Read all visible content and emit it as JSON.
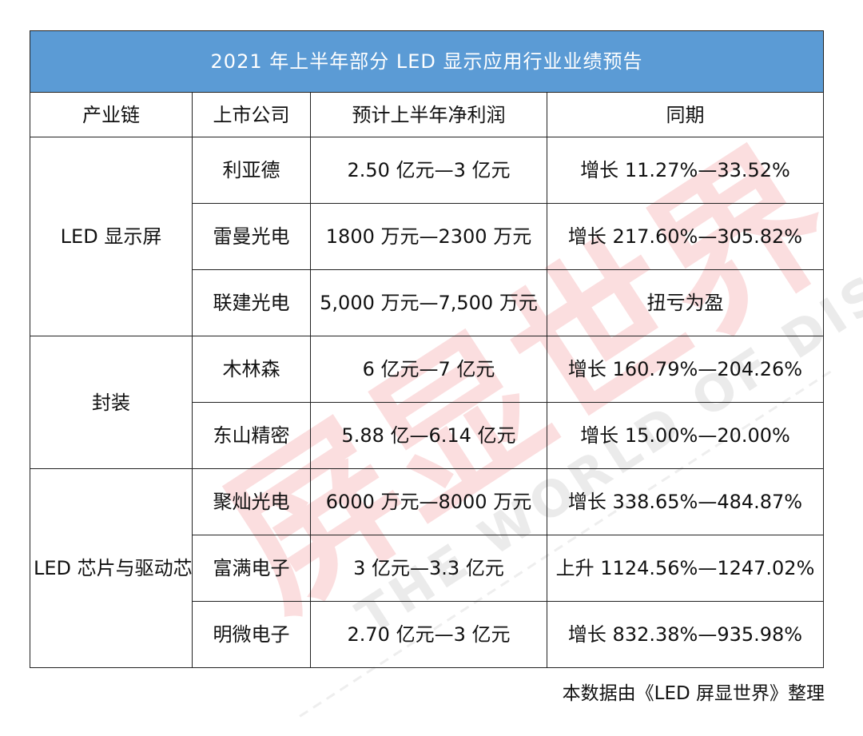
{
  "title": "2021 年上半年部分 LED 显示应用行业业绩预告",
  "columns": [
    "产业链",
    "上市公司",
    "预计上半年净利润",
    "同期"
  ],
  "groups": [
    {
      "chain": "LED 显示屏",
      "rows": [
        {
          "company": "利亚德",
          "profit": "2.50 亿元—3 亿元",
          "change": "增长 11.27%—33.52%"
        },
        {
          "company": "雷曼光电",
          "profit": "1800 万元—2300 万元",
          "change": "增长 217.60%—305.82%"
        },
        {
          "company": "联建光电",
          "profit": "5,000 万元—7,500 万元",
          "change": "扭亏为盈"
        }
      ]
    },
    {
      "chain": "封装",
      "rows": [
        {
          "company": "木林森",
          "profit": "6 亿元—7 亿元",
          "change": "增长 160.79%—204.26%"
        },
        {
          "company": "东山精密",
          "profit": "5.88 亿—6.14 亿元",
          "change": "增长 15.00%—20.00%"
        }
      ]
    },
    {
      "chain": "LED 芯片与驱动芯片",
      "rows": [
        {
          "company": "聚灿光电",
          "profit": "6000 万元—8000 万元",
          "change": "增长 338.65%—484.87%"
        },
        {
          "company": "富满电子",
          "profit": "3 亿元—3.3 亿元",
          "change": "上升 1124.56%—1247.02%"
        },
        {
          "company": "明微电子",
          "profit": "2.70 亿元—3 亿元",
          "change": "增长 832.38%—935.98%"
        }
      ]
    }
  ],
  "source_note": "本数据由《LED 屏显世界》整理",
  "watermark": {
    "logo_text": "屏显世界",
    "tagline": "THE WORLD OF DISPLAY",
    "logo_color": "#e8383d",
    "tagline_color": "#9a9a9a"
  },
  "colors": {
    "title_bg": "#5b9bd5",
    "title_text": "#ffffff",
    "border": "#222222"
  }
}
